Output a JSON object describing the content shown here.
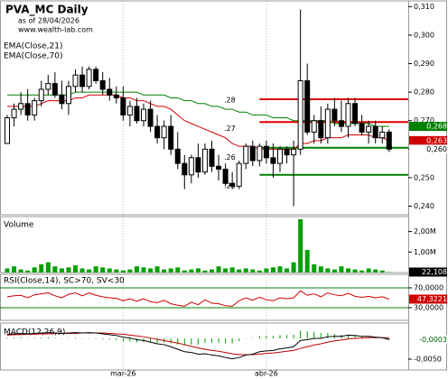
{
  "chart_data": [
    {
      "type": "candlestick",
      "title": "PVA_MC Daily",
      "subtitle": "as of 28/04/2026",
      "source": "www.wealth-lab.com",
      "categories": [
        null,
        null,
        null,
        null,
        null,
        null,
        null,
        null,
        null,
        null,
        null,
        null,
        null,
        null,
        null,
        null,
        null,
        "mar-26",
        null,
        null,
        null,
        null,
        null,
        null,
        null,
        null,
        null,
        null,
        null,
        null,
        null,
        null,
        null,
        null,
        null,
        null,
        null,
        null,
        "abr-26",
        null,
        null,
        null,
        null,
        null,
        null,
        null,
        null,
        null,
        null,
        null,
        null,
        null,
        null,
        null,
        null,
        null,
        null
      ],
      "open": [
        0.262,
        0.271,
        0.274,
        0.276,
        0.272,
        0.277,
        0.281,
        0.283,
        0.279,
        0.276,
        0.282,
        0.286,
        0.282,
        0.288,
        0.284,
        0.281,
        0.279,
        0.278,
        0.272,
        0.275,
        0.27,
        0.274,
        0.268,
        0.264,
        0.268,
        0.26,
        0.255,
        0.251,
        0.257,
        0.252,
        0.26,
        0.254,
        0.253,
        0.248,
        0.247,
        0.255,
        0.261,
        0.256,
        0.261,
        0.257,
        0.255,
        0.26,
        0.258,
        0.26,
        0.284,
        0.266,
        0.27,
        0.264,
        0.274,
        0.27,
        0.268,
        0.276,
        0.269,
        0.266,
        0.268,
        0.264,
        0.266
      ],
      "high": [
        0.272,
        0.276,
        0.28,
        0.281,
        0.278,
        0.284,
        0.286,
        0.287,
        0.284,
        0.284,
        0.288,
        0.289,
        0.289,
        0.289,
        0.287,
        0.285,
        0.282,
        0.282,
        0.277,
        0.278,
        0.276,
        0.277,
        0.272,
        0.27,
        0.272,
        0.266,
        0.258,
        0.258,
        0.262,
        0.262,
        0.263,
        0.258,
        0.255,
        0.252,
        0.256,
        0.262,
        0.263,
        0.262,
        0.263,
        0.262,
        0.261,
        0.261,
        0.263,
        0.309,
        0.29,
        0.272,
        0.275,
        0.276,
        0.278,
        0.277,
        0.278,
        0.278,
        0.272,
        0.27,
        0.27,
        0.268,
        0.267
      ],
      "low": [
        0.262,
        0.268,
        0.272,
        0.27,
        0.27,
        0.275,
        0.279,
        0.278,
        0.274,
        0.272,
        0.28,
        0.28,
        0.281,
        0.283,
        0.279,
        0.277,
        0.276,
        0.27,
        0.268,
        0.269,
        0.268,
        0.266,
        0.262,
        0.26,
        0.258,
        0.253,
        0.246,
        0.248,
        0.25,
        0.251,
        0.252,
        0.249,
        0.247,
        0.246,
        0.246,
        0.253,
        0.254,
        0.254,
        0.255,
        0.25,
        0.252,
        0.255,
        0.24,
        0.258,
        0.265,
        0.262,
        0.262,
        0.262,
        0.268,
        0.266,
        0.264,
        0.268,
        0.265,
        0.262,
        0.262,
        0.262,
        0.259
      ],
      "close": [
        0.271,
        0.274,
        0.276,
        0.272,
        0.277,
        0.281,
        0.283,
        0.279,
        0.276,
        0.282,
        0.286,
        0.282,
        0.288,
        0.284,
        0.281,
        0.279,
        0.278,
        0.272,
        0.275,
        0.27,
        0.274,
        0.268,
        0.264,
        0.268,
        0.26,
        0.255,
        0.251,
        0.257,
        0.252,
        0.26,
        0.254,
        0.253,
        0.248,
        0.247,
        0.255,
        0.261,
        0.256,
        0.261,
        0.257,
        0.255,
        0.26,
        0.258,
        0.26,
        0.284,
        0.266,
        0.27,
        0.264,
        0.274,
        0.27,
        0.268,
        0.276,
        0.269,
        0.266,
        0.268,
        0.264,
        0.266,
        0.26
      ],
      "last_value_label": "0,260",
      "series": [
        {
          "name": "EMA(Close,21)",
          "color": "#d00000",
          "last_value_label": "0,263",
          "values": [
            0.275,
            0.275,
            0.275,
            0.275,
            0.275,
            0.276,
            0.277,
            0.277,
            0.277,
            0.277,
            0.278,
            0.278,
            0.279,
            0.279,
            0.279,
            0.279,
            0.279,
            0.278,
            0.278,
            0.277,
            0.277,
            0.276,
            0.275,
            0.275,
            0.274,
            0.272,
            0.27,
            0.269,
            0.268,
            0.267,
            0.266,
            0.265,
            0.264,
            0.262,
            0.261,
            0.261,
            0.261,
            0.26,
            0.26,
            0.26,
            0.26,
            0.26,
            0.26,
            0.262,
            0.262,
            0.263,
            0.263,
            0.264,
            0.264,
            0.264,
            0.265,
            0.265,
            0.265,
            0.265,
            0.264,
            0.264,
            0.263
          ]
        },
        {
          "name": "EMA(Close,70)",
          "color": "#008000",
          "last_value_label": "0,268",
          "values": [
            0.279,
            0.279,
            0.279,
            0.279,
            0.279,
            0.279,
            0.279,
            0.279,
            0.279,
            0.279,
            0.28,
            0.28,
            0.28,
            0.28,
            0.28,
            0.28,
            0.28,
            0.28,
            0.28,
            0.28,
            0.279,
            0.279,
            0.279,
            0.279,
            0.278,
            0.278,
            0.277,
            0.277,
            0.276,
            0.276,
            0.275,
            0.275,
            0.274,
            0.274,
            0.273,
            0.273,
            0.272,
            0.272,
            0.272,
            0.271,
            0.271,
            0.271,
            0.27,
            0.27,
            0.27,
            0.27,
            0.27,
            0.27,
            0.269,
            0.269,
            0.269,
            0.269,
            0.269,
            0.269,
            0.268,
            0.268,
            0.268
          ]
        }
      ],
      "levels": [
        {
          "value": 0.2775,
          "color": "#e00000"
        },
        {
          "value": 0.2695,
          "color": "#e00000"
        },
        {
          "value": 0.2605,
          "color": "#008000"
        },
        {
          "value": 0.251,
          "color": "#008000"
        }
      ],
      "annotations": [
        {
          "text": ".28",
          "value": 0.28
        },
        {
          "text": ".27",
          "value": 0.27
        },
        {
          "text": ".26",
          "value": 0.26
        },
        {
          "text": ".25",
          "value": 0.25
        }
      ],
      "ylim": [
        0.237,
        0.312
      ],
      "yticks": [
        {
          "value": 0.24,
          "label": "0,240"
        },
        {
          "value": 0.25,
          "label": "0,250"
        },
        {
          "value": 0.26,
          "label": "0,260"
        },
        {
          "value": 0.27,
          "label": "0,270"
        },
        {
          "value": 0.28,
          "label": "0,280"
        },
        {
          "value": 0.29,
          "label": "0,290"
        },
        {
          "value": 0.3,
          "label": "0,300"
        },
        {
          "value": 0.31,
          "label": "0,310"
        }
      ]
    },
    {
      "type": "bar",
      "title": "Volume",
      "color": "#00a000",
      "values": [
        200000,
        300000,
        150000,
        100000,
        250000,
        400000,
        500000,
        300000,
        200000,
        250000,
        350000,
        200000,
        150000,
        300000,
        250000,
        200000,
        150000,
        100000,
        150000,
        300000,
        250000,
        200000,
        300000,
        150000,
        200000,
        250000,
        100000,
        150000,
        200000,
        100000,
        150000,
        300000,
        200000,
        250000,
        150000,
        200000,
        150000,
        100000,
        200000,
        250000,
        300000,
        200000,
        500000,
        2600000,
        1100000,
        400000,
        300000,
        200000,
        150000,
        300000,
        200000,
        150000,
        100000,
        200000,
        150000,
        100000,
        22108
      ],
      "last_value_label": "22,108",
      "ylim": [
        0,
        2730000
      ],
      "yticks": [
        {
          "value": 1000000,
          "label": "1,00M"
        },
        {
          "value": 2000000,
          "label": "2,00M"
        }
      ]
    },
    {
      "type": "line",
      "title": "RSI(Close,14), SC>70, SV<30",
      "color": "#d00000",
      "band_color": "#008000",
      "values": [
        52,
        54,
        55,
        50,
        56,
        58,
        60,
        54,
        50,
        57,
        60,
        54,
        60,
        55,
        52,
        50,
        49,
        44,
        48,
        43,
        48,
        42,
        40,
        45,
        38,
        35,
        33,
        41,
        36,
        46,
        39,
        38,
        34,
        33,
        44,
        50,
        45,
        51,
        46,
        44,
        50,
        48,
        50,
        64,
        55,
        58,
        52,
        60,
        56,
        54,
        59,
        53,
        51,
        53,
        50,
        52,
        47.3221
      ],
      "last_value_label": "47,3221",
      "ylim": [
        4.5,
        97.3
      ],
      "yticks": [
        {
          "value": 30,
          "label": "30,0000"
        },
        {
          "value": 70,
          "label": "70,0000"
        }
      ]
    },
    {
      "type": "macd",
      "title": "MACD(12,26,9)",
      "macd_color": "#000000",
      "signal_color": "#c00000",
      "histogram_color": "#00a000",
      "macd": [
        0.001,
        0.0011,
        0.0012,
        0.0011,
        0.0012,
        0.0013,
        0.0014,
        0.0013,
        0.0012,
        0.0013,
        0.0014,
        0.0013,
        0.0014,
        0.0013,
        0.0011,
        0.0009,
        0.0007,
        0.0003,
        0.0001,
        -0.0003,
        -0.0005,
        -0.0009,
        -0.0013,
        -0.0015,
        -0.002,
        -0.0026,
        -0.0032,
        -0.0034,
        -0.0038,
        -0.0037,
        -0.004,
        -0.0042,
        -0.0046,
        -0.0049,
        -0.0046,
        -0.004,
        -0.0038,
        -0.0032,
        -0.003,
        -0.0029,
        -0.0025,
        -0.0023,
        -0.002,
        -0.0005,
        -0.0003,
        0.0,
        0.0,
        0.0004,
        0.0005,
        0.0005,
        0.0008,
        0.0007,
        0.0005,
        0.0005,
        0.0003,
        0.0002,
        -0.0003
      ],
      "signal": [
        0.0008,
        0.0009,
        0.0009,
        0.001,
        0.001,
        0.0011,
        0.0011,
        0.0012,
        0.0012,
        0.0012,
        0.0012,
        0.0013,
        0.0013,
        0.0013,
        0.0013,
        0.0012,
        0.0011,
        0.001,
        0.0008,
        0.0006,
        0.0004,
        0.0001,
        -0.0002,
        -0.0005,
        -0.0008,
        -0.0011,
        -0.0015,
        -0.0019,
        -0.0023,
        -0.0026,
        -0.0029,
        -0.0031,
        -0.0034,
        -0.0037,
        -0.0039,
        -0.0039,
        -0.0039,
        -0.0038,
        -0.0036,
        -0.0035,
        -0.0033,
        -0.0031,
        -0.0029,
        -0.0024,
        -0.002,
        -0.0016,
        -0.0013,
        -0.0009,
        -0.0006,
        -0.0004,
        -0.0001,
        0.0,
        0.0001,
        0.0002,
        0.0002,
        0.0002,
        0.0001
      ],
      "histogram": [
        0.0002,
        0.0002,
        0.0003,
        0.0001,
        0.0002,
        0.0002,
        0.0003,
        0.0001,
        0.0,
        0.0001,
        0.0002,
        0.0,
        0.0001,
        0.0,
        -0.0002,
        -0.0003,
        -0.0004,
        -0.0007,
        -0.0007,
        -0.0009,
        -0.0009,
        -0.001,
        -0.0011,
        -0.001,
        -0.0012,
        -0.0015,
        -0.0017,
        -0.0015,
        -0.0015,
        -0.0011,
        -0.0011,
        -0.0011,
        -0.0012,
        -0.0012,
        -0.0007,
        -0.0001,
        0.0001,
        0.0006,
        0.0006,
        0.0006,
        0.0008,
        0.0008,
        0.0009,
        0.0019,
        0.0017,
        0.0016,
        0.0013,
        0.0013,
        0.0011,
        0.0009,
        0.0009,
        0.0007,
        0.0004,
        0.0003,
        0.0001,
        0.0,
        -0.0004
      ],
      "last_value_label": "-0,0003",
      "ylim": [
        -0.0076,
        0.0037
      ],
      "yticks": [
        {
          "value": -0.005,
          "label": "-0,0050"
        }
      ]
    }
  ]
}
